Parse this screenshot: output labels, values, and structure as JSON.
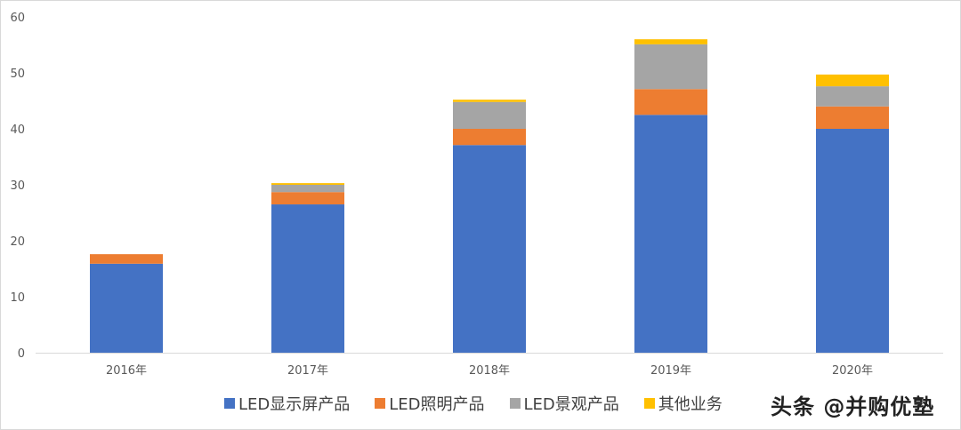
{
  "chart_data": {
    "type": "bar",
    "stacked": true,
    "title": "",
    "xlabel": "",
    "ylabel": "",
    "categories": [
      "2016年",
      "2017年",
      "2018年",
      "2019年",
      "2020年"
    ],
    "series": [
      {
        "name": "LED显示屏产品",
        "color": "#4472C4",
        "values": [
          15.9,
          26.5,
          37.1,
          42.5,
          40.0
        ]
      },
      {
        "name": "LED照明产品",
        "color": "#ED7D31",
        "values": [
          1.7,
          2.2,
          2.9,
          4.6,
          4.0
        ]
      },
      {
        "name": "LED景观产品",
        "color": "#A5A5A5",
        "values": [
          0,
          1.3,
          4.8,
          8.0,
          3.6
        ]
      },
      {
        "name": "其他业务",
        "color": "#FFC000",
        "values": [
          0,
          0.3,
          0.4,
          0.9,
          2.1
        ]
      }
    ],
    "ylim": [
      0,
      60
    ],
    "yticks": [
      0,
      10,
      20,
      30,
      40,
      50,
      60
    ],
    "grid": false,
    "legend_position": "bottom"
  },
  "watermark": "头条 @并购优塾"
}
